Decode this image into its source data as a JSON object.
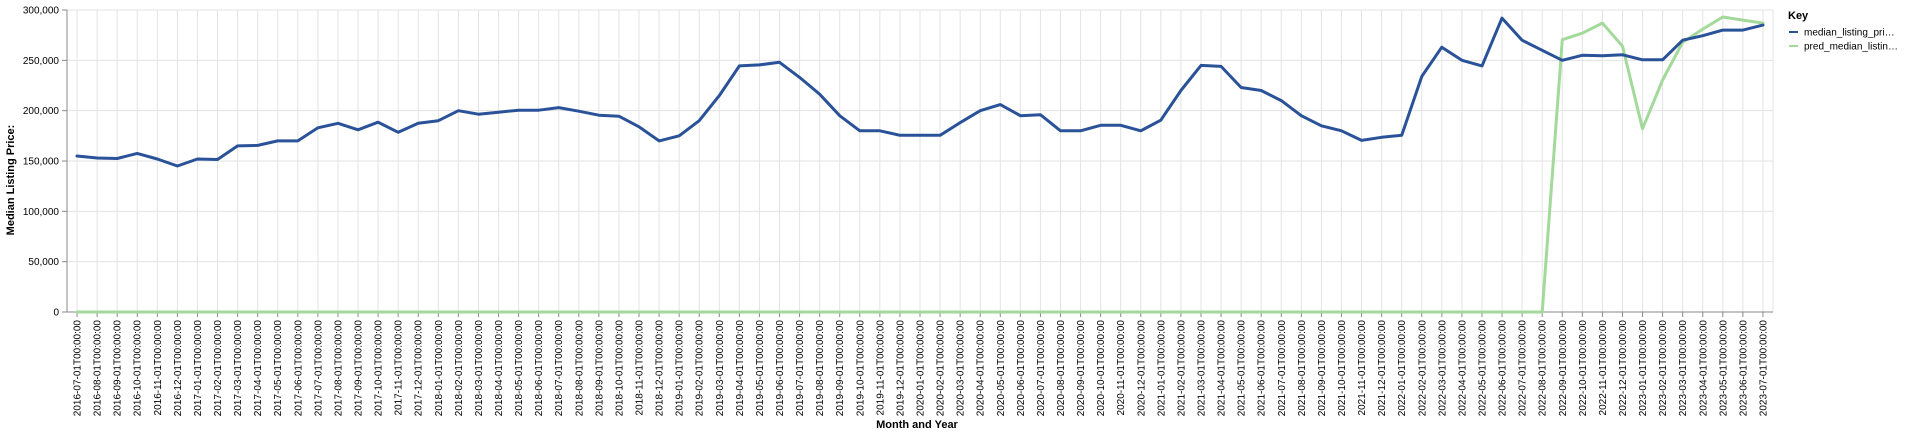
{
  "chart_data": {
    "type": "line",
    "xlabel": "Month and Year",
    "ylabel": "Median Listing Price:",
    "ylim": [
      0,
      300000
    ],
    "yticks": [
      "0",
      "50,000",
      "100,000",
      "150,000",
      "200,000",
      "250,000",
      "300,000"
    ],
    "ytick_values": [
      0,
      50000,
      100000,
      150000,
      200000,
      250000,
      300000
    ],
    "grid": true,
    "legend": {
      "title": "Key",
      "placement": "right"
    },
    "x": [
      "2016-07-01T00:00:00",
      "2016-08-01T00:00:00",
      "2016-09-01T00:00:00",
      "2016-10-01T00:00:00",
      "2016-11-01T00:00:00",
      "2016-12-01T00:00:00",
      "2017-01-01T00:00:00",
      "2017-02-01T00:00:00",
      "2017-03-01T00:00:00",
      "2017-04-01T00:00:00",
      "2017-05-01T00:00:00",
      "2017-06-01T00:00:00",
      "2017-07-01T00:00:00",
      "2017-08-01T00:00:00",
      "2017-09-01T00:00:00",
      "2017-10-01T00:00:00",
      "2017-11-01T00:00:00",
      "2017-12-01T00:00:00",
      "2018-01-01T00:00:00",
      "2018-02-01T00:00:00",
      "2018-03-01T00:00:00",
      "2018-04-01T00:00:00",
      "2018-05-01T00:00:00",
      "2018-06-01T00:00:00",
      "2018-07-01T00:00:00",
      "2018-08-01T00:00:00",
      "2018-09-01T00:00:00",
      "2018-10-01T00:00:00",
      "2018-11-01T00:00:00",
      "2018-12-01T00:00:00",
      "2019-01-01T00:00:00",
      "2019-02-01T00:00:00",
      "2019-03-01T00:00:00",
      "2019-04-01T00:00:00",
      "2019-05-01T00:00:00",
      "2019-06-01T00:00:00",
      "2019-07-01T00:00:00",
      "2019-08-01T00:00:00",
      "2019-09-01T00:00:00",
      "2019-10-01T00:00:00",
      "2019-11-01T00:00:00",
      "2019-12-01T00:00:00",
      "2020-01-01T00:00:00",
      "2020-02-01T00:00:00",
      "2020-03-01T00:00:00",
      "2020-04-01T00:00:00",
      "2020-05-01T00:00:00",
      "2020-06-01T00:00:00",
      "2020-07-01T00:00:00",
      "2020-08-01T00:00:00",
      "2020-09-01T00:00:00",
      "2020-10-01T00:00:00",
      "2020-11-01T00:00:00",
      "2020-12-01T00:00:00",
      "2021-01-01T00:00:00",
      "2021-02-01T00:00:00",
      "2021-03-01T00:00:00",
      "2021-04-01T00:00:00",
      "2021-05-01T00:00:00",
      "2021-06-01T00:00:00",
      "2021-07-01T00:00:00",
      "2021-08-01T00:00:00",
      "2021-09-01T00:00:00",
      "2021-10-01T00:00:00",
      "2021-11-01T00:00:00",
      "2021-12-01T00:00:00",
      "2022-01-01T00:00:00",
      "2022-02-01T00:00:00",
      "2022-03-01T00:00:00",
      "2022-04-01T00:00:00",
      "2022-05-01T00:00:00",
      "2022-06-01T00:00:00",
      "2022-07-01T00:00:00",
      "2022-08-01T00:00:00",
      "2022-09-01T00:00:00",
      "2022-10-01T00:00:00",
      "2022-11-01T00:00:00",
      "2022-12-01T00:00:00",
      "2023-01-01T00:00:00",
      "2023-02-01T00:00:00",
      "2023-03-01T00:00:00",
      "2023-04-01T00:00:00",
      "2023-05-01T00:00:00",
      "2023-06-01T00:00:00",
      "2023-07-01T00:00:00"
    ],
    "series": [
      {
        "name": "median_listing_pri…",
        "color": "#2a5298",
        "values": [
          155000,
          153000,
          152500,
          157500,
          152000,
          145000,
          152000,
          151500,
          165000,
          165500,
          170000,
          170000,
          183000,
          187500,
          181000,
          188500,
          178500,
          187500,
          190000,
          200000,
          196500,
          198500,
          200500,
          200500,
          203000,
          199500,
          195500,
          194500,
          184000,
          170000,
          175000,
          190000,
          215000,
          244500,
          245500,
          248000,
          233000,
          216500,
          195000,
          180000,
          180000,
          175500,
          175500,
          175500,
          188000,
          200000,
          206000,
          195000,
          196000,
          180000,
          180000,
          185500,
          185500,
          180000,
          190500,
          220000,
          245000,
          244000,
          223000,
          220000,
          210000,
          195000,
          185000,
          180000,
          170500,
          173500,
          175500,
          234000,
          263000,
          250000,
          244500,
          292000,
          270000,
          260000,
          250000,
          255000,
          254500,
          255500,
          250500,
          250500,
          270000,
          274500,
          280000,
          280000,
          285000
        ]
      },
      {
        "name": "pred_median_listin…",
        "color": "#a3d99b",
        "values": [
          0,
          0,
          0,
          0,
          0,
          0,
          0,
          0,
          0,
          0,
          0,
          0,
          0,
          0,
          0,
          0,
          0,
          0,
          0,
          0,
          0,
          0,
          0,
          0,
          0,
          0,
          0,
          0,
          0,
          0,
          0,
          0,
          0,
          0,
          0,
          0,
          0,
          0,
          0,
          0,
          0,
          0,
          0,
          0,
          0,
          0,
          0,
          0,
          0,
          0,
          0,
          0,
          0,
          0,
          0,
          0,
          0,
          0,
          0,
          0,
          0,
          0,
          0,
          0,
          0,
          0,
          0,
          0,
          0,
          0,
          0,
          0,
          0,
          0,
          270500,
          277000,
          287000,
          264000,
          182000,
          230500,
          268000,
          281000,
          293000,
          290000,
          287000
        ]
      }
    ]
  }
}
